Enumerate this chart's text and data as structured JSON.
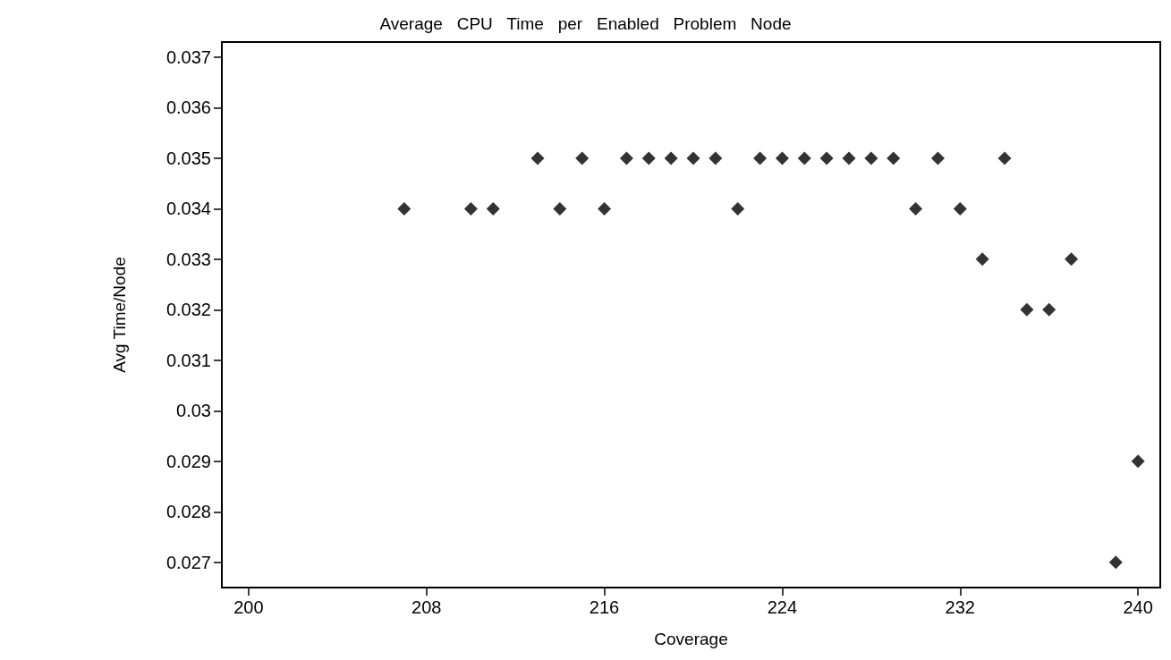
{
  "chart_data": {
    "type": "scatter",
    "title": "Average   CPU   Time   per   Enabled   Problem   Node",
    "xlabel": "Coverage",
    "ylabel": "Avg Time/Node",
    "x": [
      207,
      210,
      211,
      213,
      214,
      215,
      216,
      217,
      218,
      219,
      220,
      221,
      222,
      223,
      224,
      225,
      226,
      227,
      228,
      229,
      230,
      231,
      232,
      233,
      234,
      235,
      236,
      237,
      239,
      240
    ],
    "values": [
      0.034,
      0.034,
      0.034,
      0.035,
      0.034,
      0.035,
      0.034,
      0.035,
      0.035,
      0.035,
      0.035,
      0.035,
      0.034,
      0.035,
      0.035,
      0.035,
      0.035,
      0.035,
      0.035,
      0.035,
      0.034,
      0.035,
      0.034,
      0.033,
      0.035,
      0.032,
      0.032,
      0.033,
      0.027,
      0.029
    ],
    "color": "#000000",
    "marker": "diamond",
    "grid": false,
    "xlim": [
      198.8,
      241
    ],
    "xticks": [
      200,
      208,
      216,
      224,
      232,
      240
    ],
    "ylim": [
      0.0265,
      0.0373
    ],
    "yticks": [
      0.027,
      0.028,
      0.029,
      0.03,
      0.031,
      0.032,
      0.033,
      0.034,
      0.035,
      0.036,
      0.037
    ]
  }
}
